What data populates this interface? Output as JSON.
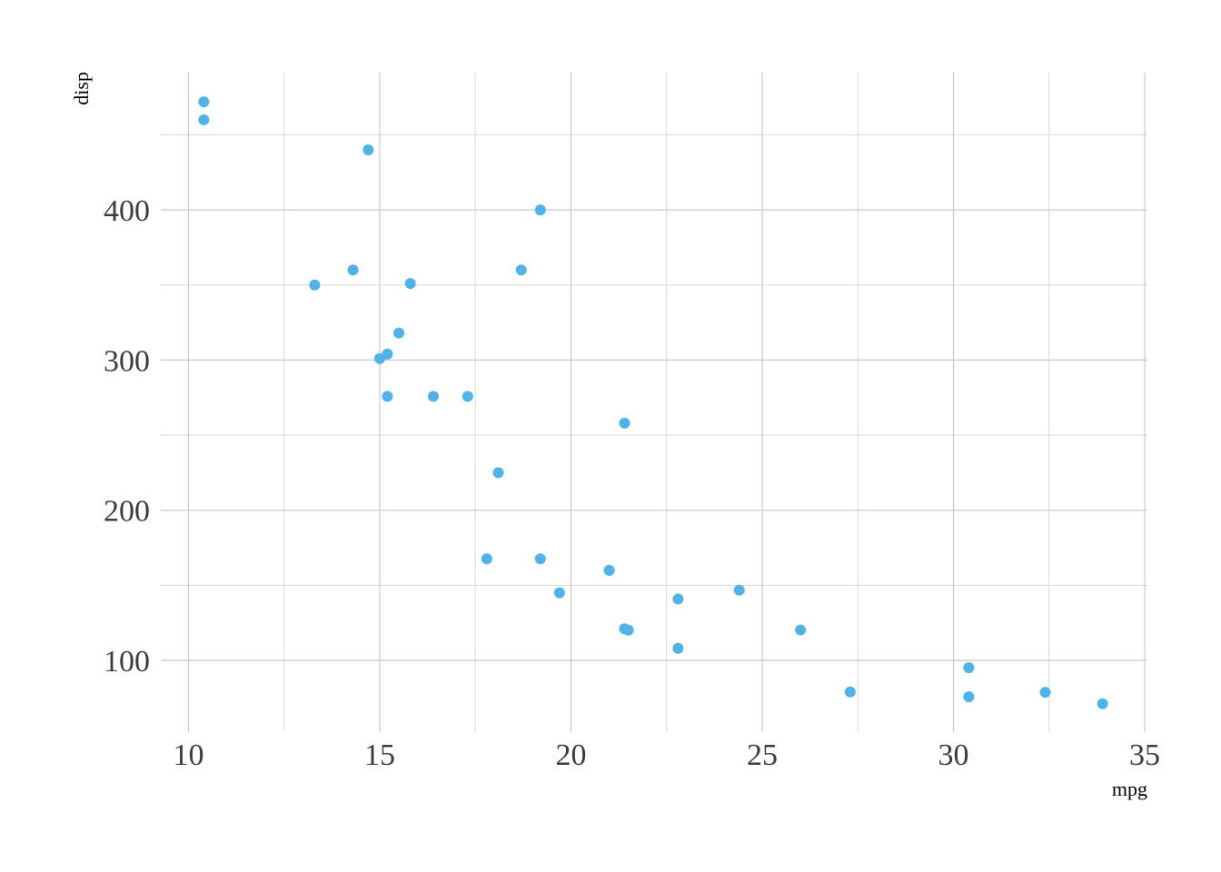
{
  "chart_data": {
    "type": "scatter",
    "xlabel": "mpg",
    "ylabel": "disp",
    "xlim": [
      9.2,
      35.1
    ],
    "ylim": [
      50,
      500
    ],
    "xticks": [
      10,
      15,
      20,
      25,
      30,
      35
    ],
    "xticks_minor": [
      12.5,
      17.5,
      22.5,
      27.5,
      32.5
    ],
    "yticks": [
      100,
      200,
      300,
      400
    ],
    "yticks_minor": [
      150,
      250,
      350,
      450
    ],
    "point_color": "#4db3e8",
    "grid": true,
    "legend": "none",
    "points": [
      {
        "x": 21.0,
        "y": 160
      },
      {
        "x": 21.0,
        "y": 160
      },
      {
        "x": 22.8,
        "y": 108
      },
      {
        "x": 21.4,
        "y": 258
      },
      {
        "x": 18.7,
        "y": 360
      },
      {
        "x": 18.1,
        "y": 225
      },
      {
        "x": 14.3,
        "y": 360
      },
      {
        "x": 24.4,
        "y": 146.7
      },
      {
        "x": 22.8,
        "y": 140.8
      },
      {
        "x": 19.2,
        "y": 167.6
      },
      {
        "x": 17.8,
        "y": 167.6
      },
      {
        "x": 16.4,
        "y": 275.8
      },
      {
        "x": 17.3,
        "y": 275.8
      },
      {
        "x": 15.2,
        "y": 275.8
      },
      {
        "x": 10.4,
        "y": 472
      },
      {
        "x": 10.4,
        "y": 460
      },
      {
        "x": 14.7,
        "y": 440
      },
      {
        "x": 32.4,
        "y": 78.7
      },
      {
        "x": 30.4,
        "y": 75.7
      },
      {
        "x": 33.9,
        "y": 71.1
      },
      {
        "x": 21.5,
        "y": 120.1
      },
      {
        "x": 15.5,
        "y": 318
      },
      {
        "x": 15.2,
        "y": 304
      },
      {
        "x": 13.3,
        "y": 350
      },
      {
        "x": 19.2,
        "y": 400
      },
      {
        "x": 27.3,
        "y": 79
      },
      {
        "x": 26.0,
        "y": 120.3
      },
      {
        "x": 30.4,
        "y": 95.1
      },
      {
        "x": 15.8,
        "y": 351
      },
      {
        "x": 19.7,
        "y": 145
      },
      {
        "x": 15.0,
        "y": 301
      },
      {
        "x": 21.4,
        "y": 121
      }
    ]
  }
}
